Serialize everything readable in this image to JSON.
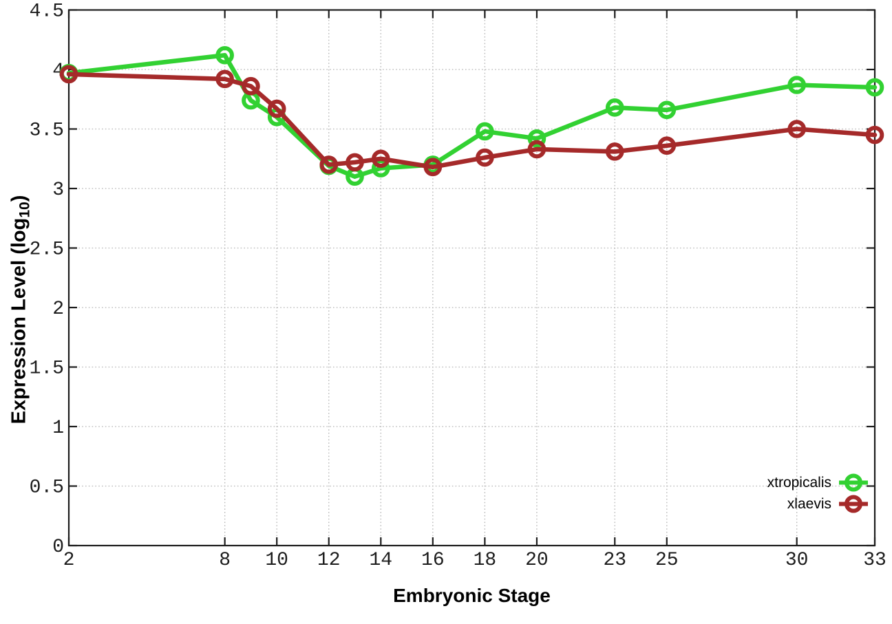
{
  "chart_data": {
    "type": "line",
    "title": "",
    "xlabel": "Embryonic Stage",
    "ylabel": "Expression Level (log10)",
    "ylabel_parts": {
      "prefix": "Expression Level (log",
      "sub": "10",
      "suffix": ")"
    },
    "xlim": [
      2,
      33
    ],
    "ylim": [
      0,
      4.5
    ],
    "grid": true,
    "legend_position": "bottom-right",
    "x_ticks": [
      2,
      8,
      10,
      12,
      14,
      16,
      18,
      20,
      23,
      25,
      30,
      33
    ],
    "x_tick_labels": [
      "2",
      "8",
      "10",
      "12",
      "14",
      "16",
      "18",
      "20",
      "23",
      "25",
      "30",
      "33"
    ],
    "y_ticks": [
      0,
      0.5,
      1,
      1.5,
      2,
      2.5,
      3,
      3.5,
      4,
      4.5
    ],
    "y_tick_labels": [
      "0",
      "0.5",
      "1",
      "1.5",
      "2",
      "2.5",
      "3",
      "3.5",
      "4",
      "4.5"
    ],
    "x": [
      2,
      8,
      9,
      10,
      12,
      13,
      14,
      16,
      18,
      20,
      23,
      25,
      30,
      33
    ],
    "series": [
      {
        "name": "xtropicalis",
        "color": "#32d132",
        "marker": "open-circle",
        "values": [
          3.97,
          4.12,
          3.74,
          3.6,
          3.19,
          3.1,
          3.17,
          3.2,
          3.48,
          3.42,
          3.68,
          3.66,
          3.87,
          3.85
        ]
      },
      {
        "name": "xlaevis",
        "color": "#a52a2a",
        "marker": "open-circle",
        "values": [
          3.96,
          3.92,
          3.86,
          3.67,
          3.2,
          3.22,
          3.25,
          3.18,
          3.26,
          3.33,
          3.31,
          3.36,
          3.5,
          3.45
        ]
      }
    ],
    "style": {
      "border_color": "#1c1c1c",
      "grid_color": "#b3b3b3",
      "background": "#ffffff"
    }
  }
}
